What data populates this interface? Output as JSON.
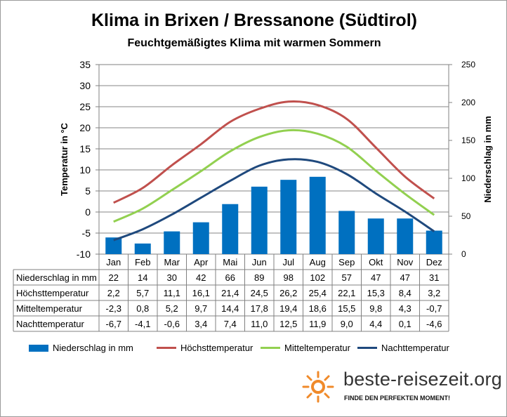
{
  "title": "Klima in Brixen / Bressanone (Südtirol)",
  "subtitle": "Feuchtgemäßigtes  Klima mit warmen Sommern",
  "logo": {
    "text": "beste-reisezeit.org",
    "tagline": "FINDE DEN PERFEKTEN MOMENT!",
    "icon": "sun-icon"
  },
  "colors": {
    "bar": "#0070c0",
    "high": "#c0504d",
    "mean": "#92d050",
    "low": "#1f497d"
  },
  "chart_data": {
    "type": "bar",
    "categories": [
      "Jan",
      "Feb",
      "Mar",
      "Apr",
      "Mai",
      "Jun",
      "Jul",
      "Aug",
      "Sep",
      "Okt",
      "Nov",
      "Dez"
    ],
    "y_left": {
      "label": "Temperatur in °C",
      "min": -10,
      "max": 35,
      "ticks": [
        -10,
        -5,
        0,
        5,
        10,
        15,
        20,
        25,
        30,
        35
      ]
    },
    "y_right": {
      "label": "Niederschlag in mm",
      "min": 0,
      "max": 250,
      "ticks": [
        0,
        50,
        100,
        150,
        200,
        250
      ]
    },
    "grid": true,
    "legend_position": "bottom",
    "series": [
      {
        "name": "Niederschlag in mm",
        "type": "bar",
        "axis": "right",
        "values": [
          22,
          14,
          30,
          42,
          66,
          89,
          98,
          102,
          57,
          47,
          47,
          31
        ],
        "labels": [
          "22",
          "14",
          "30",
          "42",
          "66",
          "89",
          "98",
          "102",
          "57",
          "47",
          "47",
          "31"
        ]
      },
      {
        "name": "Höchsttemperatur",
        "type": "line",
        "axis": "left",
        "values": [
          2.2,
          5.7,
          11.1,
          16.1,
          21.4,
          24.5,
          26.2,
          25.4,
          22.1,
          15.3,
          8.4,
          3.2
        ],
        "labels": [
          "2,2",
          "5,7",
          "11,1",
          "16,1",
          "21,4",
          "24,5",
          "26,2",
          "25,4",
          "22,1",
          "15,3",
          "8,4",
          "3,2"
        ]
      },
      {
        "name": "Mitteltemperatur",
        "type": "line",
        "axis": "left",
        "values": [
          -2.3,
          0.8,
          5.2,
          9.7,
          14.4,
          17.8,
          19.4,
          18.6,
          15.5,
          9.8,
          4.3,
          -0.7
        ],
        "labels": [
          "-2,3",
          "0,8",
          "5,2",
          "9,7",
          "14,4",
          "17,8",
          "19,4",
          "18,6",
          "15,5",
          "9,8",
          "4,3",
          "-0,7"
        ]
      },
      {
        "name": "Nachttemperatur",
        "type": "line",
        "axis": "left",
        "values": [
          -6.7,
          -4.1,
          -0.6,
          3.4,
          7.4,
          11.0,
          12.5,
          11.9,
          9.0,
          4.4,
          0.1,
          -4.6
        ],
        "labels": [
          "-6,7",
          "-4,1",
          "-0,6",
          "3,4",
          "7,4",
          "11,0",
          "12,5",
          "11,9",
          "9,0",
          "4,4",
          "0,1",
          "-4,6"
        ]
      }
    ]
  }
}
